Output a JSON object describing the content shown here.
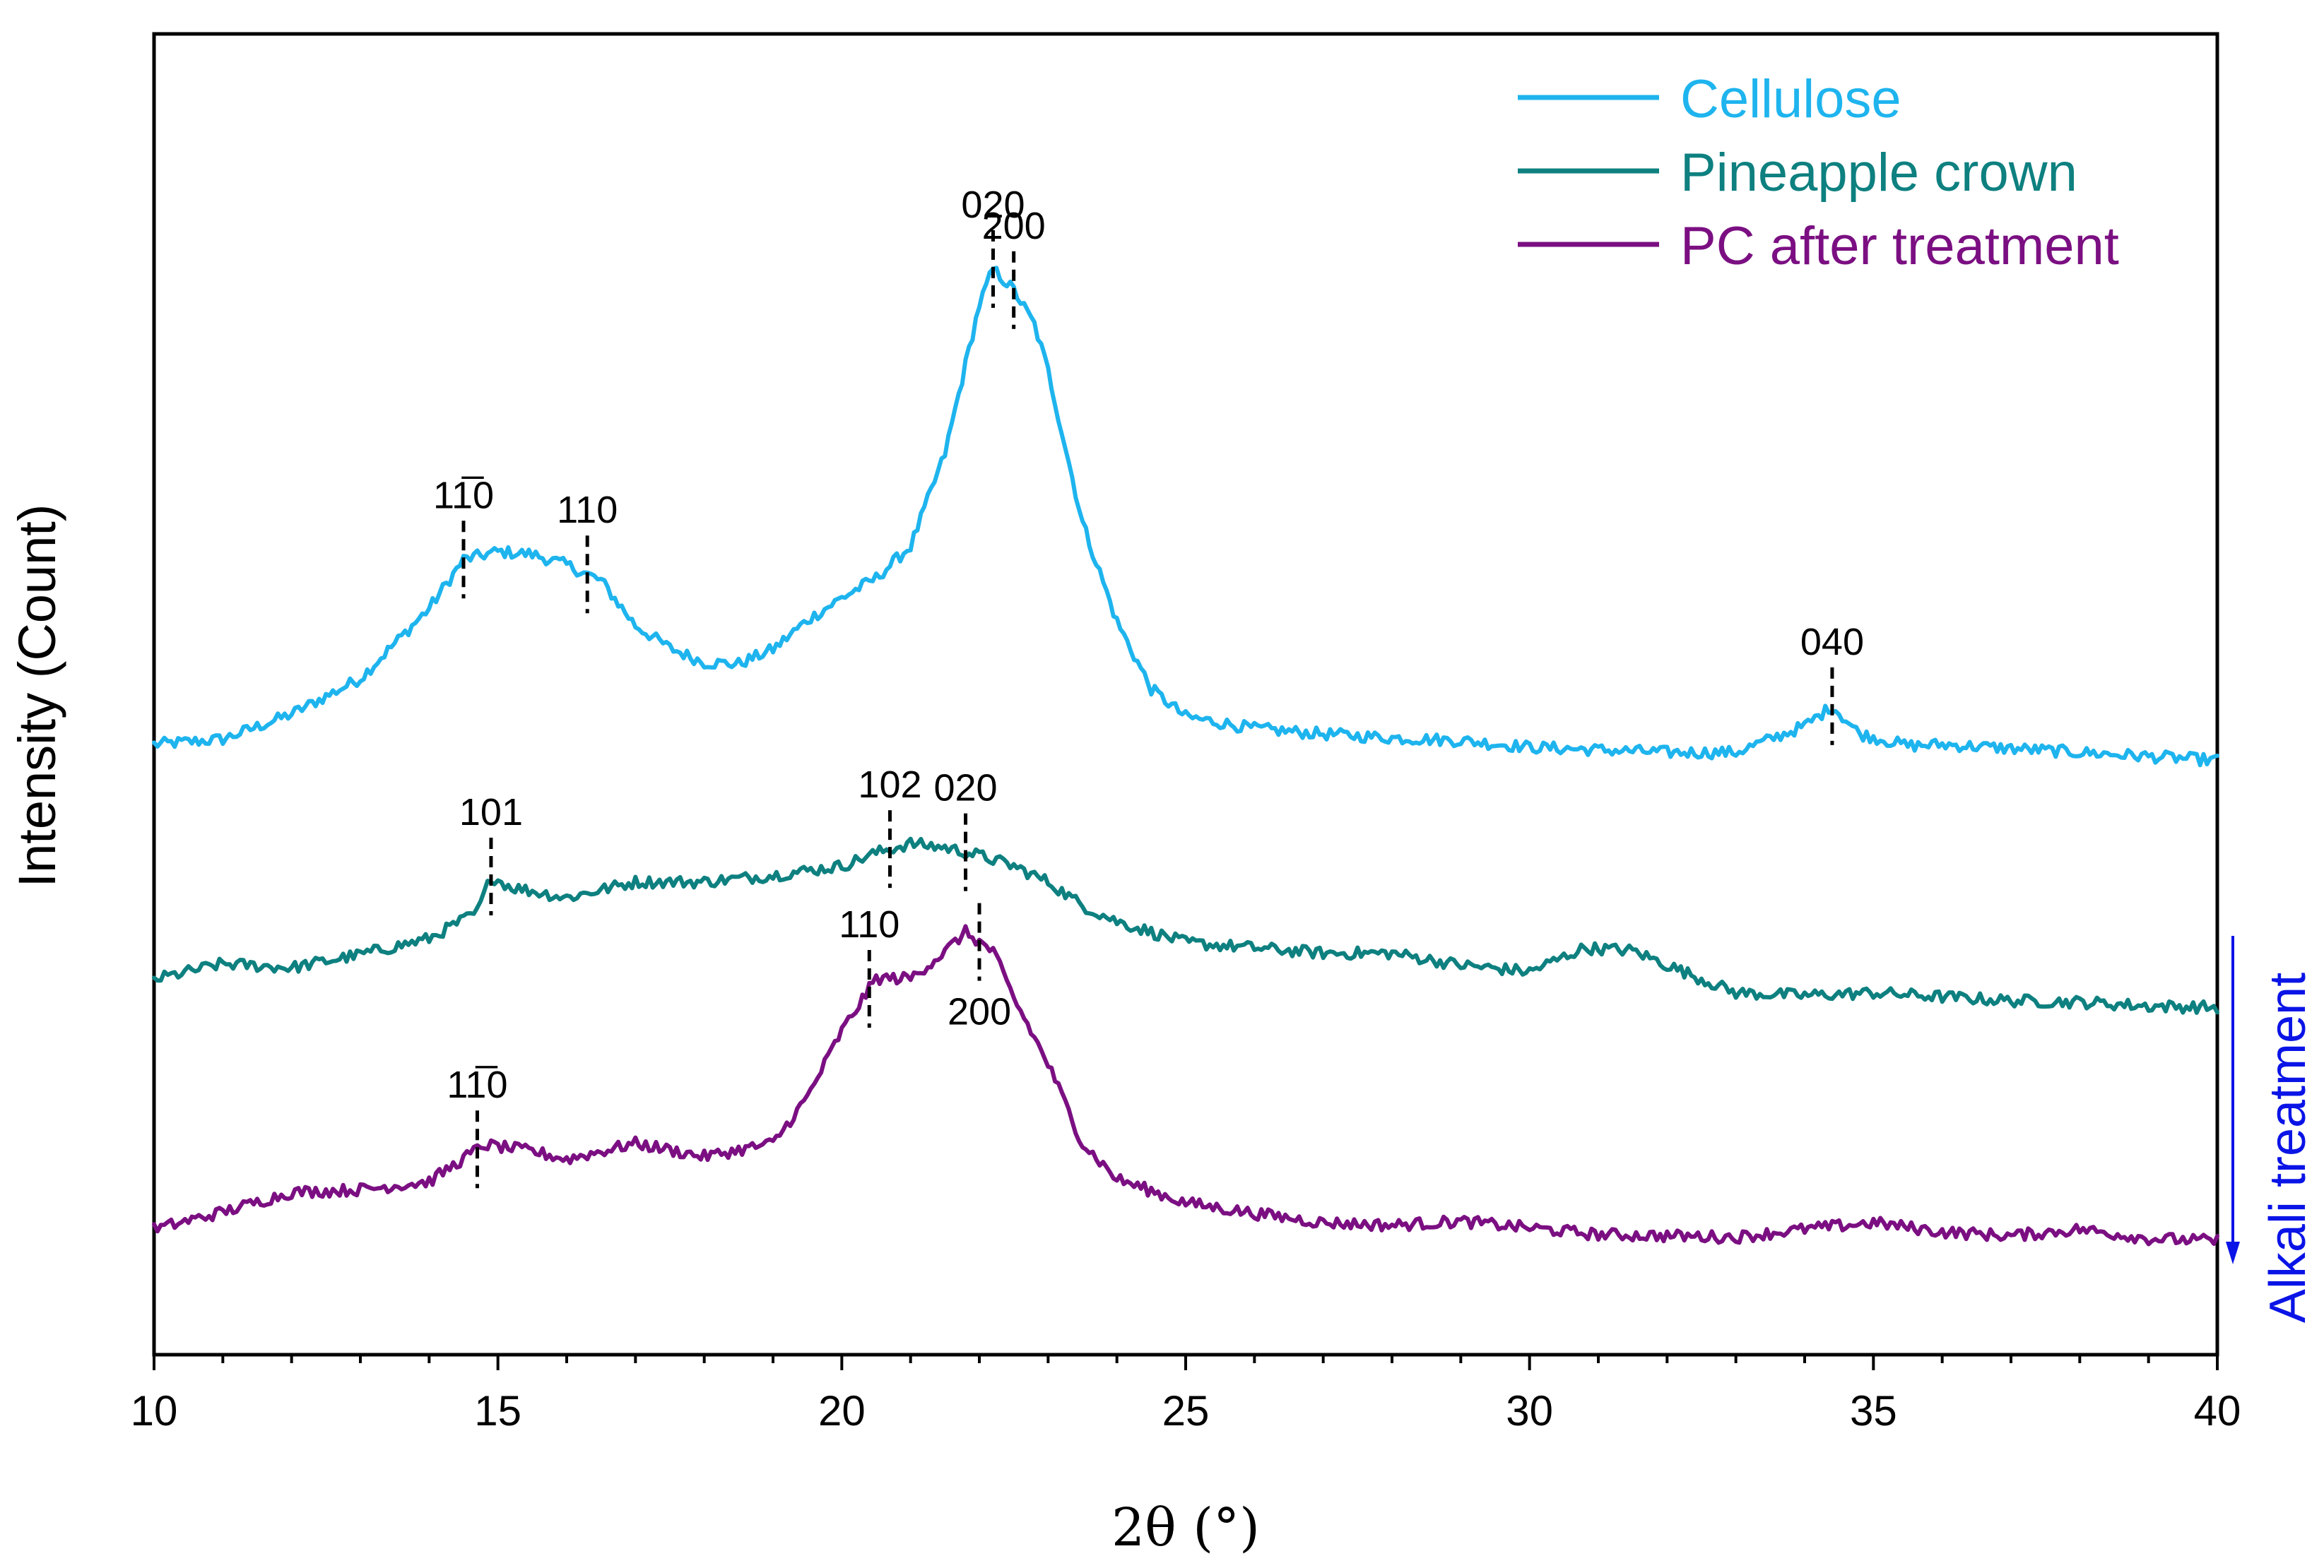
{
  "chart_data": {
    "type": "line",
    "xlabel": "2θ (°)",
    "ylabel": "Intensity (Count)",
    "xlim": [
      10,
      40
    ],
    "ylim": [
      0,
      100
    ],
    "x_ticks": [
      "10",
      "15",
      "20",
      "25",
      "30",
      "35",
      "40"
    ],
    "y_ticks_shown": false,
    "legend_position": "top-right",
    "series": [
      {
        "name": "Cellulose",
        "color": "#1EB4EE",
        "points": [
          [
            10,
            46.2
          ],
          [
            11,
            46.6
          ],
          [
            12,
            48.5
          ],
          [
            13,
            51.2
          ],
          [
            14,
            56.5
          ],
          [
            14.5,
            60.2
          ],
          [
            15,
            60.8
          ],
          [
            15.5,
            60.6
          ],
          [
            16,
            59.8
          ],
          [
            16.5,
            58.6
          ],
          [
            17,
            55.2
          ],
          [
            17.5,
            53.5
          ],
          [
            18,
            52.4
          ],
          [
            18.5,
            52.3
          ],
          [
            19,
            53.4
          ],
          [
            19.5,
            55.6
          ],
          [
            20,
            57.3
          ],
          [
            20.5,
            58.8
          ],
          [
            21,
            61.2
          ],
          [
            21.5,
            68.2
          ],
          [
            22,
            79.5
          ],
          [
            22.2,
            82.2
          ],
          [
            22.5,
            80.6
          ],
          [
            22.8,
            78
          ],
          [
            23,
            74.5
          ],
          [
            23.5,
            63
          ],
          [
            24,
            55.5
          ],
          [
            24.5,
            50.4
          ],
          [
            25,
            48.3
          ],
          [
            26,
            47.4
          ],
          [
            27,
            47
          ],
          [
            28,
            46.7
          ],
          [
            29,
            46.5
          ],
          [
            30,
            46
          ],
          [
            31,
            45.8
          ],
          [
            32,
            45.6
          ],
          [
            33,
            45.6
          ],
          [
            33.5,
            46.6
          ],
          [
            34,
            47.6
          ],
          [
            34.4,
            49.1
          ],
          [
            34.8,
            47
          ],
          [
            35.5,
            46.1
          ],
          [
            36,
            46.2
          ],
          [
            37,
            45.9
          ],
          [
            38,
            45.6
          ],
          [
            39,
            45.3
          ],
          [
            40,
            45
          ]
        ]
      },
      {
        "name": "Pineapple crown",
        "color": "#0E8080",
        "points": [
          [
            10,
            28.4
          ],
          [
            11,
            29.6
          ],
          [
            12,
            29.3
          ],
          [
            13,
            30.3
          ],
          [
            14,
            31.5
          ],
          [
            14.7,
            33.5
          ],
          [
            14.9,
            36.2
          ],
          [
            15.2,
            35.4
          ],
          [
            16,
            34.6
          ],
          [
            17,
            35.8
          ],
          [
            18,
            35.8
          ],
          [
            19,
            36.3
          ],
          [
            20,
            37
          ],
          [
            20.5,
            38
          ],
          [
            21,
            38.7
          ],
          [
            21.5,
            38.4
          ],
          [
            22,
            37.8
          ],
          [
            22.5,
            37
          ],
          [
            23,
            35.8
          ],
          [
            23.5,
            34
          ],
          [
            24,
            32.8
          ],
          [
            25,
            31.2
          ],
          [
            26,
            30.8
          ],
          [
            27,
            30.4
          ],
          [
            28,
            30.4
          ],
          [
            29,
            29.5
          ],
          [
            30,
            29
          ],
          [
            30.8,
            30.8
          ],
          [
            31.5,
            30.6
          ],
          [
            32,
            29.5
          ],
          [
            33,
            27.4
          ],
          [
            34,
            27.2
          ],
          [
            35,
            27.4
          ],
          [
            36,
            27.1
          ],
          [
            37,
            26.8
          ],
          [
            38,
            26.7
          ],
          [
            39,
            26.4
          ],
          [
            40,
            26.3
          ]
        ]
      },
      {
        "name": "PC after treatment",
        "color": "#7B0F82",
        "points": [
          [
            10,
            9.5
          ],
          [
            11,
            10.8
          ],
          [
            12,
            12.3
          ],
          [
            13,
            12.5
          ],
          [
            14,
            13.1
          ],
          [
            14.8,
            15.9
          ],
          [
            15.5,
            15.4
          ],
          [
            16,
            14.8
          ],
          [
            17,
            16
          ],
          [
            18,
            15
          ],
          [
            19,
            16
          ],
          [
            19.5,
            19.5
          ],
          [
            20,
            24.5
          ],
          [
            20.5,
            28.5
          ],
          [
            21,
            28.5
          ],
          [
            21.5,
            30.5
          ],
          [
            21.8,
            32
          ],
          [
            22.2,
            30.5
          ],
          [
            22.5,
            27
          ],
          [
            23,
            22
          ],
          [
            23.5,
            16
          ],
          [
            24,
            13.3
          ],
          [
            25,
            11.5
          ],
          [
            26,
            10.7
          ],
          [
            27,
            10
          ],
          [
            28,
            9.8
          ],
          [
            29,
            10.1
          ],
          [
            30,
            9.6
          ],
          [
            31,
            9.1
          ],
          [
            32,
            9
          ],
          [
            33,
            8.9
          ],
          [
            34,
            9.5
          ],
          [
            35,
            10
          ],
          [
            36,
            9.3
          ],
          [
            37,
            9
          ],
          [
            38,
            9.5
          ],
          [
            39,
            8.8
          ],
          [
            40,
            8.6
          ]
        ]
      }
    ],
    "peak_markers": [
      {
        "series": "Cellulose",
        "label": "11̅0",
        "x": 14.5,
        "label_side": "top"
      },
      {
        "series": "Cellulose",
        "label": "110",
        "x": 16.3,
        "label_side": "top"
      },
      {
        "series": "Cellulose",
        "label": "020",
        "x": 22.2,
        "label_side": "top"
      },
      {
        "series": "Cellulose",
        "label": "200",
        "x": 22.5,
        "label_side": "top"
      },
      {
        "series": "Cellulose",
        "label": "040",
        "x": 34.4,
        "label_side": "top"
      },
      {
        "series": "Pineapple crown",
        "label": "101",
        "x": 14.9,
        "label_side": "top"
      },
      {
        "series": "Pineapple crown",
        "label": "102",
        "x": 20.7,
        "label_side": "top"
      },
      {
        "series": "Pineapple crown",
        "label": "020",
        "x": 21.8,
        "label_side": "top"
      },
      {
        "series": "PC after treatment",
        "label": "11̅0",
        "x": 14.7,
        "label_side": "top"
      },
      {
        "series": "PC after treatment",
        "label": "110",
        "x": 20.4,
        "label_side": "top"
      },
      {
        "series": "PC after treatment",
        "label": "200",
        "x": 22.0,
        "label_side": "bottom"
      }
    ],
    "annotation": {
      "text": "Alkali treatment",
      "color": "#0A14E6",
      "direction": "down"
    }
  }
}
